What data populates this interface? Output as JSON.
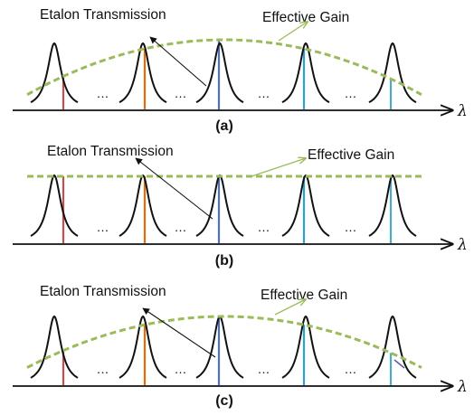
{
  "figure": {
    "panels": [
      {
        "label": "(a)",
        "gain_profile": "curved",
        "etalon_label": "Etalon Transmission",
        "gain_label": "Effective Gain",
        "axis_symbol": "λ",
        "ellipsis": "…"
      },
      {
        "label": "(b)",
        "gain_profile": "flat",
        "etalon_label": "Etalon Transmission",
        "gain_label": "Effective Gain",
        "axis_symbol": "λ",
        "ellipsis": "…"
      },
      {
        "label": "(c)",
        "gain_profile": "curved",
        "etalon_label": "Etalon Transmission",
        "gain_label": "Effective Gain",
        "axis_symbol": "λ",
        "ellipsis": "…"
      }
    ],
    "colors": {
      "peaks": "#111111",
      "gain_curve": "#9bbb59",
      "lines": [
        "#c0504d",
        "#e46c0a",
        "#4f6fc0",
        "#2e9fd0",
        "#4bacc6",
        "#5a5aa8"
      ]
    }
  }
}
